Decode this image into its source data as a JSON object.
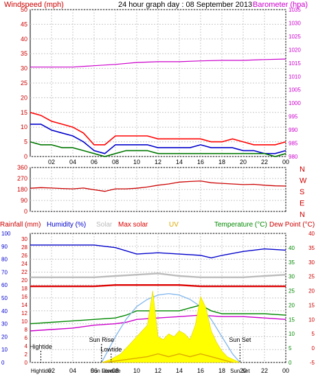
{
  "colors": {
    "bg": "#ffffff",
    "grid": "#c8c8c8",
    "axis": "#000000",
    "wind_red": "#ff0000",
    "wind_blue": "#0000cc",
    "wind_green": "#007700",
    "baro_magenta": "#cc00cc",
    "dir_red": "#cc0000",
    "humidity_blue": "#0000cc",
    "solar_grey": "#bbbbbb",
    "maxsolar_red": "#dd0000",
    "uv_gold": "#ddaa00",
    "temp_green": "#008800",
    "dew_red": "#cc0000",
    "solar_yellow": "#ffff00",
    "sun_curve": "#88bbee"
  },
  "chart_data": [
    {
      "type": "line",
      "title": "24 hour graph day : 08 September 2013",
      "y_left_label": "Windspeed (mph)",
      "y_right_label": "Barometer (hpa)",
      "x_ticks": [
        "02",
        "04",
        "06",
        "08",
        "10",
        "12",
        "14",
        "16",
        "18",
        "20",
        "22",
        "00"
      ],
      "x_range": [
        0,
        24
      ],
      "y_left_ticks": [
        0,
        5,
        10,
        15,
        20,
        25,
        30,
        35,
        40,
        45,
        50
      ],
      "y_left_range": [
        0,
        50
      ],
      "y_right_ticks": [
        980,
        985,
        990,
        995,
        1000,
        1005,
        1010,
        1015,
        1020,
        1025,
        1030,
        1035
      ],
      "y_right_range": [
        980,
        1035
      ],
      "grid": true,
      "series": [
        {
          "key": "gust",
          "axis": "left",
          "color_key": "wind_red",
          "x": [
            0,
            1,
            2,
            3,
            4,
            5,
            6,
            7,
            8,
            9,
            10,
            11,
            12,
            13,
            14,
            15,
            16,
            17,
            18,
            19,
            20,
            21,
            22,
            23,
            24
          ],
          "y": [
            15,
            14,
            12,
            11,
            10,
            8,
            4,
            4,
            7,
            7,
            7,
            7,
            6,
            6,
            6,
            6,
            6,
            5,
            5,
            6,
            5,
            4,
            4,
            4,
            5
          ]
        },
        {
          "key": "speed",
          "axis": "left",
          "color_key": "wind_blue",
          "x": [
            0,
            1,
            2,
            3,
            4,
            5,
            6,
            7,
            8,
            9,
            10,
            11,
            12,
            13,
            14,
            15,
            16,
            17,
            18,
            19,
            20,
            21,
            22,
            23,
            24
          ],
          "y": [
            11,
            11,
            9,
            8,
            7,
            5,
            2,
            1,
            4,
            4,
            4,
            4,
            3,
            3,
            3,
            3,
            4,
            3,
            3,
            3,
            2,
            2,
            1,
            1,
            2
          ]
        },
        {
          "key": "average",
          "axis": "left",
          "color_key": "wind_green",
          "x": [
            0,
            1,
            2,
            3,
            4,
            5,
            6,
            7,
            8,
            9,
            10,
            11,
            12,
            13,
            14,
            15,
            16,
            17,
            18,
            19,
            20,
            21,
            22,
            23,
            24
          ],
          "y": [
            5,
            4,
            4,
            3,
            3,
            2,
            1,
            0,
            1,
            2,
            2,
            2,
            1,
            1,
            1,
            1,
            1,
            1,
            1,
            1,
            1,
            1,
            1,
            0,
            1
          ]
        },
        {
          "key": "barometer",
          "axis": "right",
          "color_key": "baro_magenta",
          "x": [
            0,
            2,
            4,
            6,
            8,
            10,
            12,
            14,
            16,
            18,
            20,
            22,
            24
          ],
          "y": [
            1013.5,
            1013.5,
            1013.5,
            1014,
            1014.5,
            1015.2,
            1015.5,
            1015.5,
            1015.8,
            1016,
            1016,
            1016.3,
            1016.5
          ]
        }
      ]
    },
    {
      "type": "line",
      "y_left_ticks": [
        0,
        90,
        180,
        270,
        360
      ],
      "y_left_range": [
        0,
        360
      ],
      "compass_labels": [
        "N",
        "W",
        "S",
        "E",
        "N"
      ],
      "x_range": [
        0,
        24
      ],
      "grid": true,
      "series": [
        {
          "key": "direction",
          "axis": "left",
          "color_key": "dir_red",
          "x": [
            0,
            1,
            2,
            3,
            4,
            5,
            6,
            7,
            8,
            9,
            10,
            11,
            12,
            13,
            14,
            15,
            16,
            17,
            18,
            19,
            20,
            21,
            22,
            23,
            24
          ],
          "y": [
            190,
            195,
            192,
            188,
            185,
            192,
            178,
            165,
            185,
            185,
            190,
            200,
            215,
            225,
            240,
            245,
            250,
            235,
            230,
            225,
            220,
            222,
            215,
            210,
            208
          ]
        }
      ]
    },
    {
      "type": "line",
      "legend": [
        "Rainfall (mm)",
        "Humidity (%)",
        "Solar",
        "Max solar",
        "UV",
        "Temperature (°C)",
        "Dew Point (°C)"
      ],
      "x_ticks": [
        "02",
        "04",
        "06",
        "08",
        "10",
        "12",
        "14",
        "16",
        "18",
        "20",
        "22",
        "00"
      ],
      "x_range": [
        0,
        24
      ],
      "y_rain_ticks": [
        0,
        2,
        4,
        6,
        8,
        10,
        12,
        14,
        16,
        18,
        20,
        22,
        24,
        26,
        28,
        30
      ],
      "y_humidity_ticks": [
        0,
        10,
        20,
        30,
        40,
        50,
        60,
        70,
        80,
        90,
        100
      ],
      "y_humidity_range": [
        0,
        100
      ],
      "y_temp_ticks": [
        -5,
        0,
        5,
        10,
        15,
        20,
        25,
        30,
        35,
        40
      ],
      "y_temp_range": [
        -5,
        40
      ],
      "y_solar_ticks": [
        0,
        5,
        10,
        15,
        20,
        25,
        30,
        35,
        40
      ],
      "grid": true,
      "annotations": [
        {
          "text": "Hightide",
          "x": 1.0
        },
        {
          "text": "Sun Rise",
          "x": 6.7
        },
        {
          "text": "Lowtide",
          "x": 7.6
        },
        {
          "text": "Sun Set",
          "x": 19.7
        }
      ],
      "bottom_labels": [
        "Hightide",
        "Sun Rise",
        "Lowtide",
        "Sun Set"
      ],
      "series": [
        {
          "key": "humidity",
          "axis": "humidity",
          "color_key": "humidity_blue",
          "x": [
            0,
            2,
            4,
            6,
            8,
            10,
            12,
            14,
            16,
            17,
            18,
            20,
            22,
            24
          ],
          "y": [
            91,
            91,
            91,
            91,
            89,
            84,
            85,
            84,
            83,
            81,
            83,
            86,
            88,
            87
          ]
        },
        {
          "key": "solar_grey_line",
          "axis": "humidity",
          "color_key": "solar_grey",
          "x": [
            0,
            2,
            4,
            6,
            8,
            10,
            12,
            14,
            16,
            18,
            20,
            22,
            24
          ],
          "y": [
            66,
            66,
            66,
            66,
            67,
            68,
            69,
            67,
            66,
            66,
            66,
            67,
            68
          ]
        },
        {
          "key": "max_solar_line",
          "axis": "humidity",
          "color_key": "maxsolar_red",
          "x": [
            0,
            2,
            4,
            6,
            8,
            10,
            12,
            14,
            16,
            18,
            20,
            22,
            24
          ],
          "y": [
            59,
            59,
            59,
            59,
            60,
            60,
            60,
            60,
            59,
            59,
            59,
            59,
            59
          ]
        },
        {
          "key": "temperature",
          "axis": "temp",
          "color_key": "temp_green",
          "x": [
            0,
            2,
            4,
            6,
            8,
            9,
            10,
            12,
            14,
            15,
            16,
            17,
            18,
            20,
            22,
            24
          ],
          "y": [
            8.5,
            9,
            9.5,
            10,
            10.5,
            11.5,
            13,
            13,
            13,
            14,
            15,
            13,
            12,
            12,
            12,
            11.5
          ]
        },
        {
          "key": "dew_point",
          "axis": "temp",
          "color_key": "baro_magenta",
          "x": [
            0,
            2,
            4,
            6,
            8,
            9,
            10,
            12,
            14,
            16,
            18,
            20,
            22,
            24
          ],
          "y": [
            6,
            6.5,
            7,
            8,
            8.5,
            9,
            10,
            10.5,
            11,
            11.5,
            11,
            11,
            10.5,
            10
          ]
        },
        {
          "key": "max_solar_curve",
          "axis": "temp",
          "color_key": "sun_curve",
          "x": [
            6.7,
            8,
            9,
            10,
            11,
            12,
            13,
            14,
            15,
            16,
            17,
            18,
            19,
            19.7
          ],
          "y": [
            -5,
            4,
            10,
            14.5,
            17,
            18.5,
            19,
            18.5,
            17,
            14.5,
            10,
            4,
            -2,
            -5
          ]
        },
        {
          "key": "solar_fill",
          "axis": "temp",
          "color_key": "solar_yellow",
          "x": [
            6.7,
            7.5,
            8.5,
            9.5,
            10.5,
            11,
            11.5,
            12,
            12.5,
            13,
            13.5,
            14,
            14.5,
            15,
            15.5,
            16,
            16.5,
            17,
            17.5,
            18,
            18.5,
            19.7
          ],
          "y": [
            -5,
            -4,
            -2,
            2,
            6,
            8,
            20,
            4,
            3,
            5,
            4,
            6,
            5,
            3,
            8,
            18,
            14,
            6,
            2,
            -1,
            -3,
            -5
          ]
        },
        {
          "key": "uv",
          "axis": "temp",
          "color_key": "uv_gold",
          "x": [
            7,
            9,
            11,
            12,
            13,
            14,
            15,
            16,
            17,
            18,
            19
          ],
          "y": [
            -5,
            -4,
            -3,
            -2,
            -3,
            -2,
            -3,
            -2,
            -3,
            -4,
            -5
          ]
        }
      ]
    }
  ]
}
